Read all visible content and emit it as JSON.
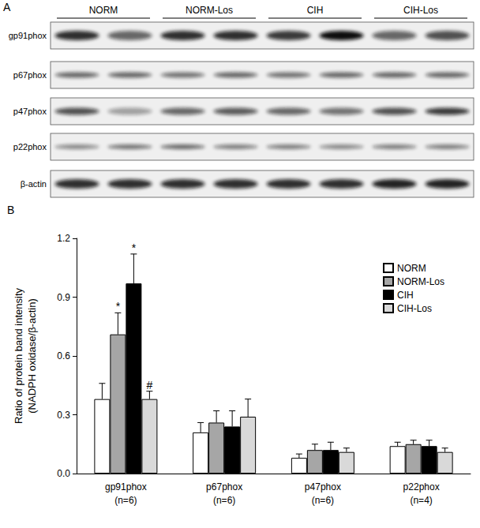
{
  "panel_a": {
    "label": "A",
    "groups": [
      "NORM",
      "NORM-Los",
      "CIH",
      "CIH-Los"
    ],
    "proteins": [
      "gp91phox",
      "p67phox",
      "p47phox",
      "p22phox",
      "β-actin"
    ]
  },
  "panel_b": {
    "label": "B"
  },
  "chart_data": {
    "type": "bar",
    "y_label": "Ratio of protein band intensity\n(NADPH oxidase/β-actin)",
    "categories": [
      "gp91phox\n(n=6)",
      "p67phox\n(n=6)",
      "p47phox\n(n=6)",
      "p22phox\n(n=4)"
    ],
    "series": [
      {
        "name": "NORM",
        "color": "#ffffff",
        "values": [
          0.38,
          0.21,
          0.08,
          0.14
        ],
        "errors": [
          0.08,
          0.05,
          0.02,
          0.02
        ]
      },
      {
        "name": "NORM-Los",
        "color": "#a6a6a6",
        "values": [
          0.71,
          0.26,
          0.12,
          0.15
        ],
        "errors": [
          0.11,
          0.06,
          0.03,
          0.02
        ]
      },
      {
        "name": "CIH",
        "color": "#000000",
        "values": [
          0.97,
          0.24,
          0.12,
          0.14
        ],
        "errors": [
          0.15,
          0.08,
          0.04,
          0.03
        ]
      },
      {
        "name": "CIH-Los",
        "color": "#d9d9d9",
        "values": [
          0.38,
          0.29,
          0.11,
          0.11
        ],
        "errors": [
          0.04,
          0.09,
          0.02,
          0.02
        ]
      }
    ],
    "annotations": [
      {
        "text": "*",
        "category": "gp91phox\n(n=6)",
        "series": "NORM-Los"
      },
      {
        "text": "*",
        "category": "gp91phox\n(n=6)",
        "series": "CIH"
      },
      {
        "text": "#",
        "category": "gp91phox\n(n=6)",
        "series": "CIH-Los"
      }
    ],
    "ylim": [
      0,
      1.2
    ],
    "yticks": [
      {
        "value": 0,
        "label": "0.0"
      },
      0.3,
      0.6,
      0.9,
      1.2
    ],
    "grid": false,
    "legend": "upper right"
  }
}
